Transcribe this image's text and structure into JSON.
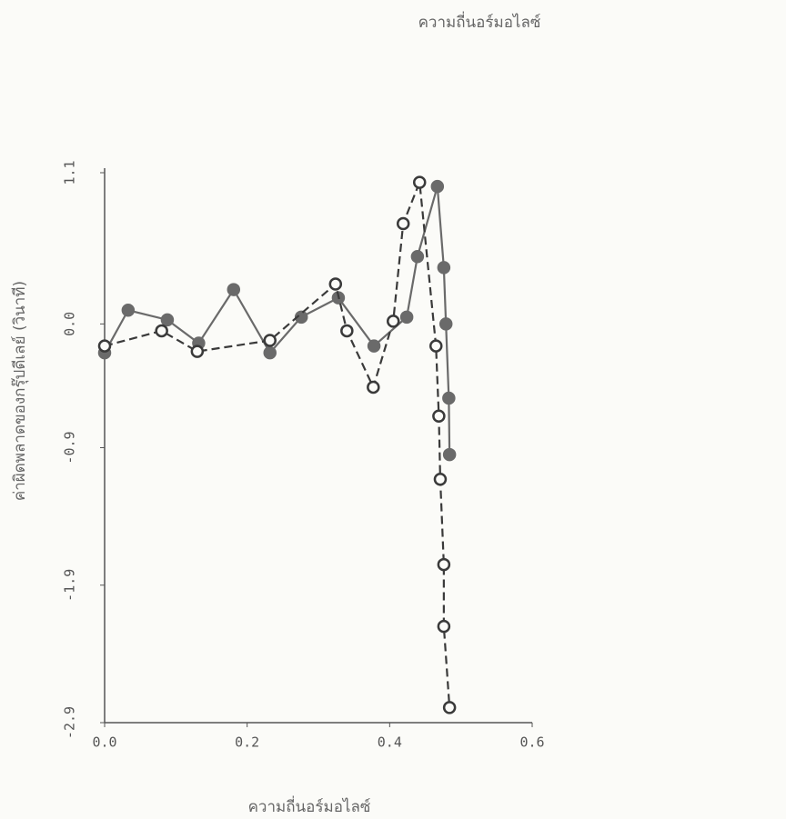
{
  "chart_data": {
    "type": "line",
    "title": "ความถี่นอร์มอไลซ์",
    "x_label": "ความถี่นอร์มอไลซ์",
    "y_label": "ค่าผิดพลาดของกรุ๊ปดีเลย์ (วินาที)",
    "xlim": [
      0,
      0.6
    ],
    "ylim": [
      -2.9,
      1.1
    ],
    "xticks": [
      {
        "value": 0,
        "label": "0.0"
      },
      0.2,
      0.4,
      0.6
    ],
    "yticks": [
      {
        "value": -2.9,
        "label": "-2.9"
      },
      -1.9,
      -0.9,
      {
        "value": 0,
        "label": "0.0"
      },
      1.1
    ],
    "series": [
      {
        "color": "#6a6a6a",
        "marker": "filled",
        "dashed": false,
        "x": [
          0,
          0.033,
          0.088,
          0.132,
          0.181,
          0.232,
          0.276,
          0.328,
          0.378,
          0.424,
          0.439,
          0.467,
          0.476,
          0.479,
          0.483,
          0.484
        ],
        "values": [
          -0.21,
          0.1,
          0.03,
          -0.14,
          0.25,
          -0.21,
          0.05,
          0.19,
          -0.16,
          0.05,
          0.49,
          1.0,
          0.41,
          0,
          -0.54,
          -0.95
        ]
      },
      {
        "color": "#3a3a3a",
        "marker": "open",
        "dashed": true,
        "x": [
          0,
          0.08,
          0.13,
          0.232,
          0.324,
          0.34,
          0.377,
          0.405,
          0.419,
          0.442,
          0.465,
          0.469,
          0.471,
          0.476,
          0.476,
          0.484
        ],
        "values": [
          -0.16,
          -0.05,
          -0.2,
          -0.12,
          0.29,
          -0.05,
          -0.46,
          0.02,
          0.73,
          1.03,
          -0.16,
          -0.67,
          -1.13,
          -1.75,
          -2.2,
          -2.79
        ]
      }
    ]
  }
}
